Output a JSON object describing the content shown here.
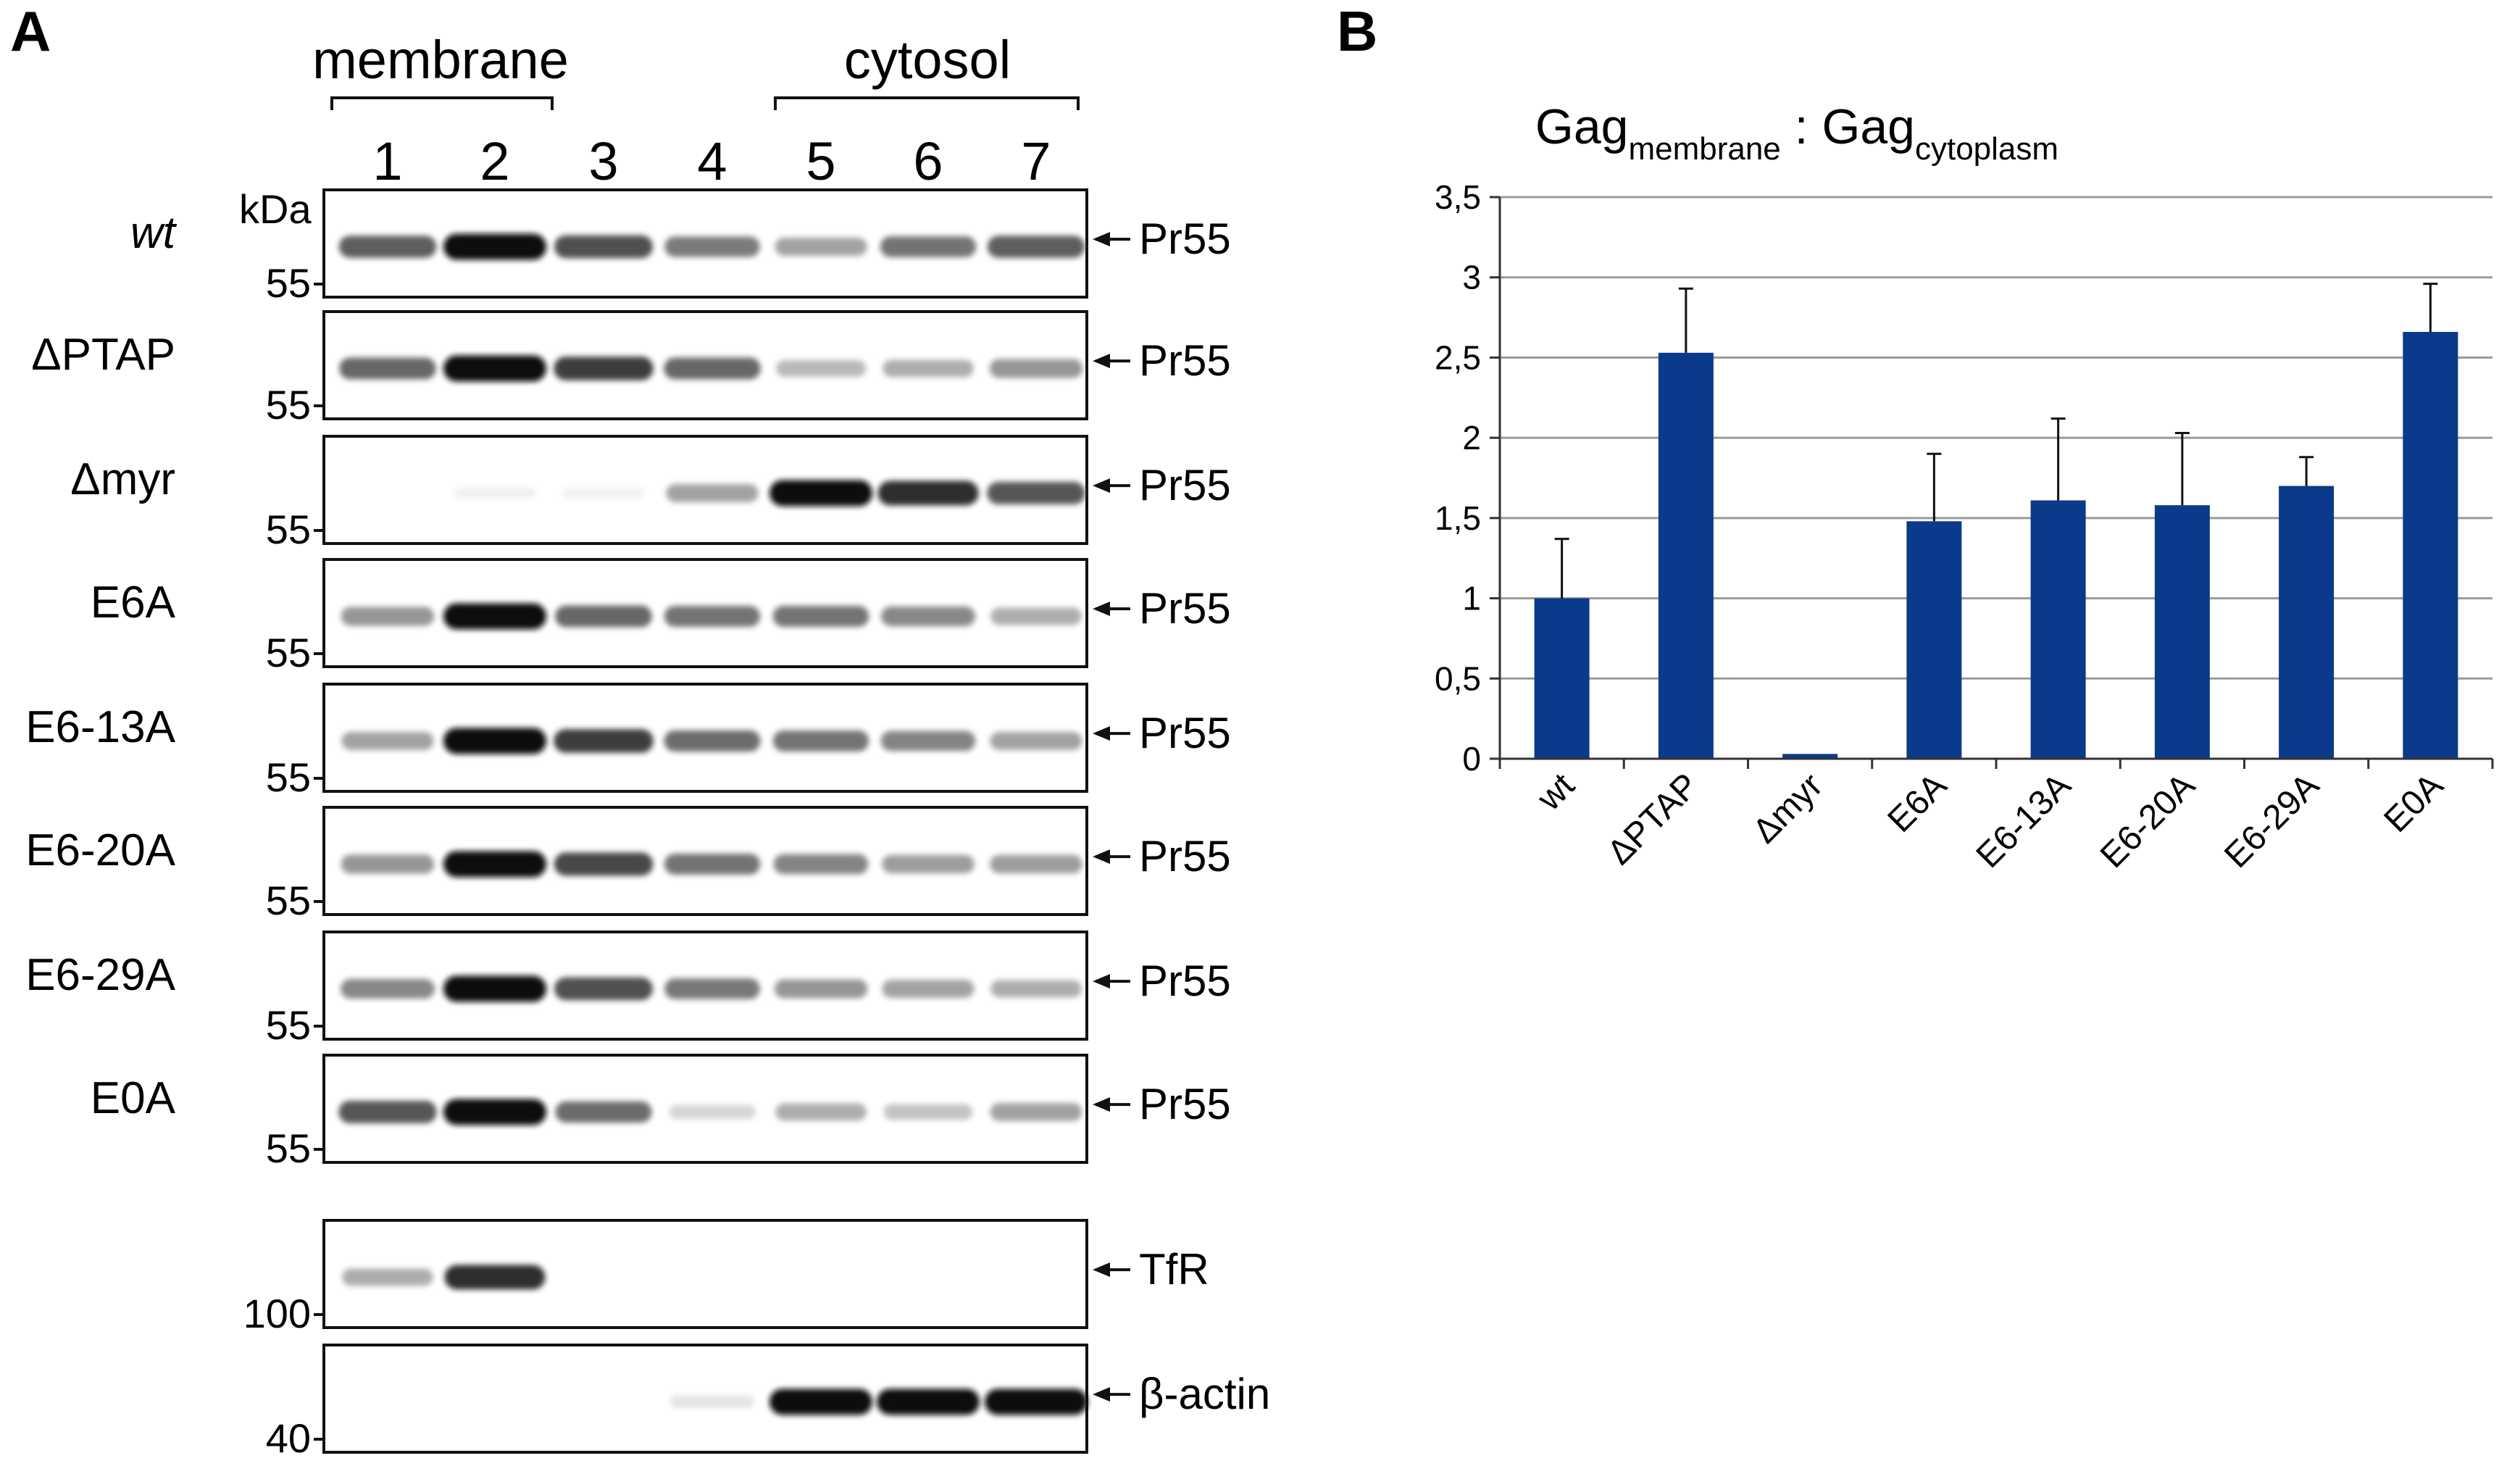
{
  "panel_a": {
    "letter": "A",
    "group_membrane": "membrane",
    "group_cytosol": "cytosol",
    "lanes": [
      "1",
      "2",
      "3",
      "4",
      "5",
      "6",
      "7"
    ],
    "kda_label": "kDa",
    "rows": [
      {
        "label": "wt",
        "italic": true,
        "marker": "55",
        "band": "Pr55",
        "intensity": [
          0.75,
          1.0,
          0.8,
          0.65,
          0.5,
          0.68,
          0.75
        ]
      },
      {
        "label": "ΔPTAP",
        "italic": false,
        "marker": "55",
        "band": "Pr55",
        "intensity": [
          0.72,
          1.0,
          0.85,
          0.72,
          0.4,
          0.45,
          0.55
        ]
      },
      {
        "label": "Δmyr",
        "italic": false,
        "marker": "55",
        "band": "Pr55",
        "intensity": [
          0.0,
          0.06,
          0.05,
          0.5,
          1.0,
          0.9,
          0.78
        ]
      },
      {
        "label": "E6A",
        "italic": false,
        "marker": "55",
        "band": "Pr55",
        "intensity": [
          0.55,
          1.0,
          0.72,
          0.68,
          0.68,
          0.6,
          0.45
        ]
      },
      {
        "label": "E6-13A",
        "italic": false,
        "marker": "55",
        "band": "Pr55",
        "intensity": [
          0.5,
          1.0,
          0.85,
          0.7,
          0.68,
          0.62,
          0.5
        ]
      },
      {
        "label": "E6-20A",
        "italic": false,
        "marker": "55",
        "band": "Pr55",
        "intensity": [
          0.55,
          1.0,
          0.82,
          0.68,
          0.62,
          0.52,
          0.52
        ]
      },
      {
        "label": "E6-29A",
        "italic": false,
        "marker": "55",
        "band": "Pr55",
        "intensity": [
          0.6,
          1.0,
          0.8,
          0.66,
          0.55,
          0.5,
          0.45
        ]
      },
      {
        "label": "E0A",
        "italic": false,
        "marker": "55",
        "band": "Pr55",
        "intensity": [
          0.78,
          1.0,
          0.7,
          0.25,
          0.45,
          0.35,
          0.5
        ]
      },
      {
        "label": "",
        "italic": false,
        "marker": "100",
        "band": "TfR",
        "intensity": [
          0.45,
          0.9,
          0.0,
          0.0,
          0.0,
          0.0,
          0.0
        ]
      },
      {
        "label": "",
        "italic": false,
        "marker": "40",
        "band": "β-actin",
        "intensity": [
          0.0,
          0.0,
          0.0,
          0.15,
          1.0,
          1.0,
          1.0
        ]
      }
    ]
  },
  "panel_b": {
    "letter": "B",
    "title_main_1": "Gag",
    "title_sub_1": "membrane",
    "title_sep": " : ",
    "title_main_2": "Gag",
    "title_sub_2": "cytoplasm"
  },
  "chart_data": {
    "type": "bar",
    "categories": [
      "wt",
      "ΔPTAP",
      "Δmyr",
      "E6A",
      "E6-13A",
      "E6-20A",
      "E6-29A",
      "E0A"
    ],
    "values": [
      1.0,
      2.53,
      0.03,
      1.48,
      1.61,
      1.58,
      1.7,
      2.66
    ],
    "errors": [
      0.37,
      0.4,
      0.0,
      0.42,
      0.51,
      0.45,
      0.18,
      0.3
    ],
    "ylim": [
      0,
      3.5
    ],
    "yticks": [
      "0",
      "0,5",
      "1",
      "1,5",
      "2",
      "2,5",
      "3",
      "3,5"
    ],
    "grid": true,
    "bar_color": "#0b3a8a"
  }
}
